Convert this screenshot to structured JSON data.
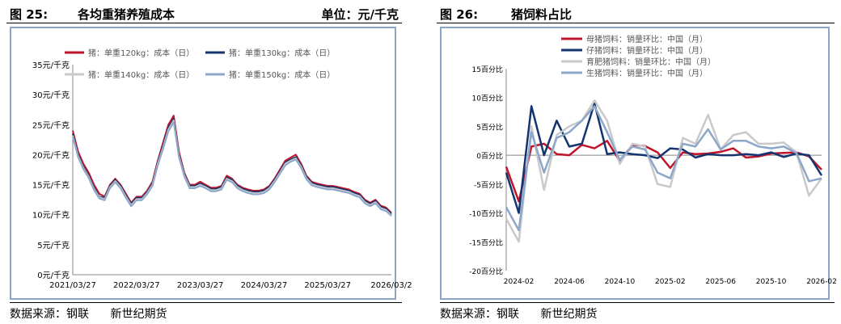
{
  "left": {
    "fig_num": "图 25:",
    "title": "各均重猪养殖成本",
    "unit": "单位：元/千克",
    "source_label": "数据来源：钢联",
    "source_org": "新世纪期货",
    "chart_data": {
      "type": "line",
      "ylim": [
        0,
        35
      ],
      "yticks": [
        "0元/千克",
        "5元/千克",
        "10元/千克",
        "15元/千克",
        "20元/千克",
        "25元/千克",
        "30元/千克",
        "35元/千克"
      ],
      "xticks": [
        "2021/03/27",
        "2022/03/27",
        "2023/03/27",
        "2024/03/27",
        "2025/03/27",
        "2026/03/2"
      ],
      "x": [
        "2021-03",
        "2021-04",
        "2021-05",
        "2021-06",
        "2021-07",
        "2021-08",
        "2021-09",
        "2021-10",
        "2021-11",
        "2021-12",
        "2022-01",
        "2022-02",
        "2022-03",
        "2022-04",
        "2022-05",
        "2022-06",
        "2022-07",
        "2022-08",
        "2022-09",
        "2022-10",
        "2022-11",
        "2022-12",
        "2023-01",
        "2023-02",
        "2023-03",
        "2023-04",
        "2023-05",
        "2023-06",
        "2023-07",
        "2023-08",
        "2023-09",
        "2023-10",
        "2023-11",
        "2023-12",
        "2024-01",
        "2024-02",
        "2024-03",
        "2024-04",
        "2024-05",
        "2024-06",
        "2024-07",
        "2024-08",
        "2024-09",
        "2024-10",
        "2024-11",
        "2024-12",
        "2025-01",
        "2025-02",
        "2025-03",
        "2025-04",
        "2025-05",
        "2025-06",
        "2025-07",
        "2025-08",
        "2025-09",
        "2025-10",
        "2025-11",
        "2025-12",
        "2026-01",
        "2026-02",
        "2026-03"
      ],
      "series": [
        {
          "name": "猪：单重120kg：成本（日）",
          "color": "#c0142a",
          "values": [
            24.0,
            20.5,
            18.5,
            17.0,
            15.0,
            13.5,
            13.0,
            15.0,
            16.0,
            15.0,
            13.5,
            12.0,
            13.0,
            13.0,
            14.0,
            15.5,
            19.0,
            22.0,
            25.0,
            26.5,
            20.5,
            17.0,
            15.0,
            15.0,
            15.5,
            15.0,
            14.5,
            14.5,
            14.8,
            16.5,
            16.0,
            15.0,
            14.5,
            14.2,
            14.0,
            14.0,
            14.2,
            14.8,
            16.0,
            17.5,
            19.0,
            19.5,
            20.0,
            18.5,
            16.5,
            15.5,
            15.2,
            15.0,
            14.8,
            14.8,
            14.6,
            14.4,
            14.2,
            13.8,
            13.5,
            12.5,
            12.0,
            12.5,
            11.5,
            11.2,
            10.3
          ]
        },
        {
          "name": "猪：单重130kg：成本（日）",
          "color": "#13346f",
          "values": [
            23.5,
            20.0,
            18.0,
            16.5,
            14.5,
            13.0,
            12.8,
            14.8,
            15.8,
            14.8,
            13.2,
            11.8,
            12.8,
            12.8,
            13.8,
            15.2,
            18.7,
            21.5,
            24.5,
            26.0,
            20.0,
            16.8,
            14.8,
            14.8,
            15.2,
            14.8,
            14.3,
            14.3,
            14.6,
            16.2,
            15.8,
            14.8,
            14.3,
            14.0,
            13.8,
            13.8,
            14.0,
            14.6,
            15.8,
            17.2,
            18.7,
            19.2,
            19.6,
            18.2,
            16.3,
            15.3,
            15.0,
            14.8,
            14.6,
            14.6,
            14.4,
            14.2,
            14.0,
            13.6,
            13.3,
            12.3,
            11.8,
            12.3,
            11.3,
            11.0,
            10.1
          ]
        },
        {
          "name": "猪：单重140kg：成本（日）",
          "color": "#c9c9c9",
          "values": [
            23.2,
            19.8,
            17.8,
            16.3,
            14.3,
            12.9,
            12.6,
            14.6,
            15.6,
            14.6,
            13.0,
            11.6,
            12.6,
            12.6,
            13.6,
            15.0,
            18.5,
            21.2,
            24.2,
            25.7,
            19.8,
            16.6,
            14.6,
            14.6,
            15.0,
            14.6,
            14.1,
            14.1,
            14.4,
            16.0,
            15.6,
            14.6,
            14.1,
            13.8,
            13.6,
            13.6,
            13.8,
            14.4,
            15.6,
            17.0,
            18.5,
            19.0,
            19.4,
            18.0,
            16.1,
            15.1,
            14.8,
            14.6,
            14.4,
            14.4,
            14.2,
            14.0,
            13.8,
            13.4,
            13.1,
            12.1,
            11.6,
            12.1,
            11.1,
            10.8,
            9.9
          ]
        },
        {
          "name": "猪：单重150kg：成本（日）",
          "color": "#8da7ca",
          "values": [
            23.0,
            19.6,
            17.6,
            16.1,
            14.1,
            12.7,
            12.4,
            14.4,
            15.4,
            14.4,
            12.8,
            11.4,
            12.4,
            12.4,
            13.4,
            14.8,
            18.2,
            20.9,
            23.9,
            25.4,
            19.6,
            16.4,
            14.4,
            14.4,
            14.8,
            14.4,
            13.9,
            13.9,
            14.2,
            15.8,
            15.4,
            14.4,
            13.9,
            13.6,
            13.4,
            13.4,
            13.6,
            14.2,
            15.4,
            16.8,
            18.2,
            18.8,
            19.2,
            17.8,
            15.9,
            14.9,
            14.6,
            14.4,
            14.2,
            14.2,
            14.0,
            13.8,
            13.6,
            13.2,
            12.9,
            11.9,
            11.4,
            11.9,
            10.9,
            10.6,
            9.8
          ]
        }
      ]
    }
  },
  "right": {
    "fig_num": "图 26:",
    "title": "猪饲料占比",
    "source_label": "数据来源：钢联",
    "source_org": "新世纪期货",
    "chart_data": {
      "type": "line",
      "ylim": [
        -20,
        15
      ],
      "yticks": [
        "-20百分比",
        "-15百分比",
        "-10百分比",
        "-5百分比",
        "0百分比",
        "5百分比",
        "10百分比",
        "15百分比"
      ],
      "xticks": [
        "2024-02",
        "2024-06",
        "2024-10",
        "2025-02",
        "2025-06",
        "2025-10",
        "2026-02"
      ],
      "x": [
        "2024-01",
        "2024-02",
        "2024-03",
        "2024-04",
        "2024-05",
        "2024-06",
        "2024-07",
        "2024-08",
        "2024-09",
        "2024-10",
        "2024-11",
        "2024-12",
        "2025-01",
        "2025-02",
        "2025-03",
        "2025-04",
        "2025-05",
        "2025-06",
        "2025-07",
        "2025-08",
        "2025-09",
        "2025-10",
        "2025-11",
        "2025-12",
        "2026-01",
        "2026-02"
      ],
      "series": [
        {
          "name": "母猪饲料：销量环比：中国（月）",
          "color": "#c0142a",
          "values": [
            -2,
            -8,
            1.5,
            2,
            0.2,
            0,
            1.8,
            1.2,
            2.5,
            -1,
            1.8,
            1.6,
            0.5,
            -2.2,
            0.5,
            0.2,
            0.3,
            0.6,
            1.2,
            -0.4,
            -0.2,
            0.3,
            0.4,
            0.5,
            -0.2,
            -2.5
          ]
        },
        {
          "name": "仔猪饲料：销量环比：中国（月）",
          "color": "#13346f",
          "values": [
            -3,
            -10,
            8.5,
            0,
            6,
            1.5,
            2,
            9,
            0.2,
            0.5,
            0.2,
            0,
            -0.5,
            1.2,
            1,
            -0.4,
            0.2,
            0,
            0,
            0.2,
            0,
            0.5,
            -0.3,
            0.3,
            0,
            -3.5
          ]
        },
        {
          "name": "育肥猪饲料：销量环比：中国（月）",
          "color": "#c9c9c9",
          "values": [
            -11,
            -15,
            5,
            -6,
            3.5,
            5,
            6,
            9.5,
            6,
            -1.5,
            2,
            1.5,
            -5,
            -5.5,
            3,
            2,
            7,
            1,
            3.5,
            4,
            2,
            2,
            2.2,
            0.5,
            -7,
            -4
          ]
        },
        {
          "name": "生猪饲料：销量环比：中国（月）",
          "color": "#8da7ca",
          "values": [
            -9,
            -13,
            4,
            -3,
            3,
            4,
            6,
            8.5,
            4,
            -0.8,
            1.5,
            1,
            -3,
            -4,
            2,
            1.5,
            4.5,
            1,
            2.5,
            2.5,
            1.5,
            1.2,
            1.5,
            0.4,
            -4.5,
            -4
          ]
        }
      ]
    }
  }
}
